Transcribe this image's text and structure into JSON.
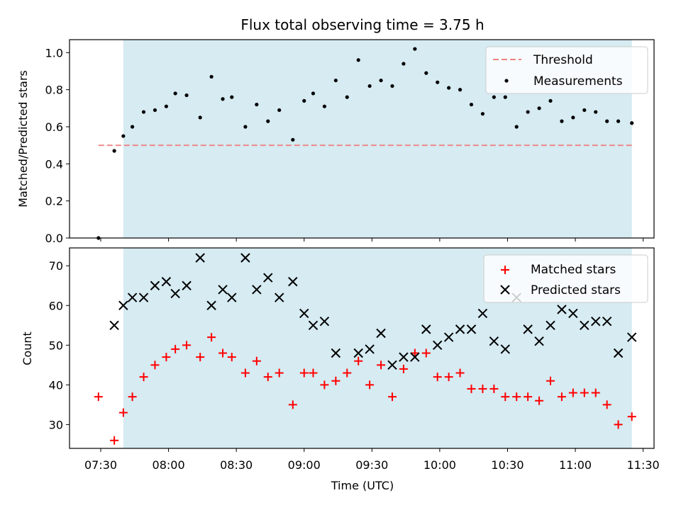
{
  "chart_data": [
    {
      "type": "scatter",
      "title": "Flux total observing time = 3.75 h",
      "ylabel": "Matched/Predicted stars",
      "xlabel": "",
      "ylim": [
        0,
        1.07
      ],
      "yticks": [
        "0.0",
        "0.2",
        "0.4",
        "0.6",
        "0.8",
        "1.0"
      ],
      "grid": false,
      "legend_position": "top-right",
      "shaded_interval": [
        "07:40",
        "11:25"
      ],
      "threshold": {
        "name": "Threshold",
        "value": 0.5,
        "x_start": "07:29",
        "x_end": "11:25",
        "color": "#f08080"
      },
      "series": [
        {
          "name": "Measurements",
          "marker": "dot",
          "color": "#000000",
          "x": [
            "07:29",
            "07:36",
            "07:40",
            "07:44",
            "07:49",
            "07:54",
            "07:59",
            "08:03",
            "08:08",
            "08:14",
            "08:19",
            "08:24",
            "08:28",
            "08:34",
            "08:39",
            "08:44",
            "08:49",
            "08:55",
            "09:00",
            "09:04",
            "09:09",
            "09:14",
            "09:19",
            "09:24",
            "09:29",
            "09:34",
            "09:39",
            "09:44",
            "09:49",
            "09:54",
            "09:59",
            "10:04",
            "10:09",
            "10:14",
            "10:19",
            "10:24",
            "10:29",
            "10:34",
            "10:39",
            "10:44",
            "10:49",
            "10:54",
            "10:59",
            "11:04",
            "11:09",
            "11:14",
            "11:19",
            "11:25"
          ],
          "values": [
            0.0,
            0.47,
            0.55,
            0.6,
            0.68,
            0.69,
            0.71,
            0.78,
            0.77,
            0.65,
            0.87,
            0.75,
            0.76,
            0.6,
            0.72,
            0.63,
            0.69,
            0.53,
            0.74,
            0.78,
            0.71,
            0.85,
            0.76,
            0.96,
            0.82,
            0.85,
            0.82,
            0.94,
            1.02,
            0.89,
            0.84,
            0.81,
            0.8,
            0.72,
            0.67,
            0.76,
            0.76,
            0.6,
            0.68,
            0.7,
            0.74,
            0.63,
            0.65,
            0.69,
            0.68,
            0.63,
            0.63,
            0.62
          ]
        }
      ]
    },
    {
      "type": "scatter",
      "title": "",
      "xlabel": "Time (UTC)",
      "ylabel": "Count",
      "ylim": [
        24,
        74.5
      ],
      "yticks": [
        "30",
        "40",
        "50",
        "60",
        "70"
      ],
      "xticks": [
        "07:30",
        "08:00",
        "08:30",
        "09:00",
        "09:30",
        "10:00",
        "10:30",
        "11:00",
        "11:30"
      ],
      "grid": false,
      "legend_position": "top-right",
      "shaded_interval": [
        "07:40",
        "11:25"
      ],
      "series": [
        {
          "name": "Matched stars",
          "marker": "plus",
          "color": "#ff0000",
          "x": [
            "07:29",
            "07:36",
            "07:40",
            "07:44",
            "07:49",
            "07:54",
            "07:59",
            "08:03",
            "08:08",
            "08:14",
            "08:19",
            "08:24",
            "08:28",
            "08:34",
            "08:39",
            "08:44",
            "08:49",
            "08:55",
            "09:00",
            "09:04",
            "09:09",
            "09:14",
            "09:19",
            "09:24",
            "09:29",
            "09:34",
            "09:39",
            "09:44",
            "09:49",
            "09:54",
            "09:59",
            "10:04",
            "10:09",
            "10:14",
            "10:19",
            "10:24",
            "10:29",
            "10:34",
            "10:39",
            "10:44",
            "10:49",
            "10:54",
            "10:59",
            "11:04",
            "11:09",
            "11:14",
            "11:19",
            "11:25"
          ],
          "values": [
            37,
            26,
            33,
            37,
            42,
            45,
            47,
            49,
            50,
            47,
            52,
            48,
            47,
            43,
            46,
            42,
            43,
            35,
            43,
            43,
            40,
            41,
            43,
            46,
            40,
            45,
            37,
            44,
            48,
            48,
            42,
            42,
            43,
            39,
            39,
            39,
            37,
            37,
            37,
            36,
            41,
            37,
            38,
            38,
            38,
            35,
            30,
            32
          ]
        },
        {
          "name": "Predicted stars",
          "marker": "x",
          "color": "#000000",
          "x": [
            "07:36",
            "07:40",
            "07:44",
            "07:49",
            "07:54",
            "07:59",
            "08:03",
            "08:08",
            "08:14",
            "08:19",
            "08:24",
            "08:28",
            "08:34",
            "08:39",
            "08:44",
            "08:49",
            "08:55",
            "09:00",
            "09:04",
            "09:09",
            "09:14",
            "09:24",
            "09:29",
            "09:34",
            "09:39",
            "09:44",
            "09:49",
            "09:54",
            "09:59",
            "10:04",
            "10:09",
            "10:14",
            "10:19",
            "10:24",
            "10:29",
            "10:34",
            "10:39",
            "10:44",
            "10:49",
            "10:54",
            "10:59",
            "11:04",
            "11:09",
            "11:14",
            "11:19",
            "11:25"
          ],
          "values": [
            55,
            60,
            62,
            62,
            65,
            66,
            63,
            65,
            72,
            60,
            64,
            62,
            72,
            64,
            67,
            62,
            66,
            58,
            55,
            56,
            48,
            48,
            49,
            53,
            45,
            47,
            47,
            54,
            50,
            52,
            54,
            54,
            58,
            51,
            49,
            62,
            54,
            51,
            55,
            59,
            58,
            55,
            56,
            56,
            48,
            52
          ]
        }
      ]
    }
  ]
}
